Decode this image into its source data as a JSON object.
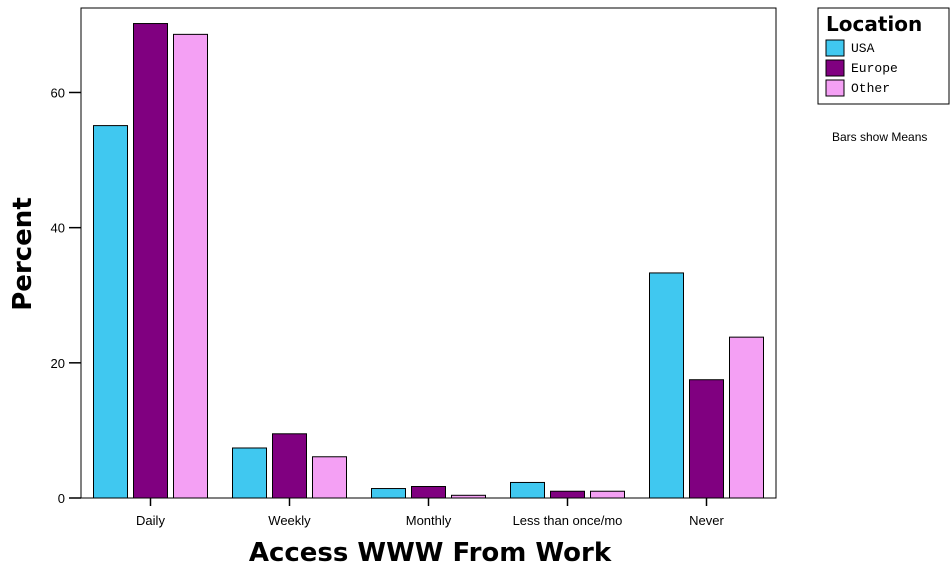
{
  "chart_data": {
    "type": "bar",
    "xlabel": "Access WWW From Work",
    "ylabel": "Percent",
    "categories": [
      "Daily",
      "Weekly",
      "Monthly",
      "Less than once/mo",
      "Never"
    ],
    "series": [
      {
        "name": "USA",
        "color": "#40c8f0",
        "values": [
          55.1,
          7.4,
          1.4,
          2.3,
          33.3
        ]
      },
      {
        "name": "Europe",
        "color": "#800080",
        "values": [
          70.2,
          9.5,
          1.7,
          1.0,
          17.5
        ]
      },
      {
        "name": "Other",
        "color": "#f4a0f4",
        "values": [
          68.6,
          6.1,
          0.4,
          1.0,
          23.8
        ]
      }
    ],
    "ylim": [
      0,
      72.5
    ],
    "yticks": [
      0,
      20,
      40,
      60
    ],
    "legend": {
      "title": "Location",
      "placement": "right"
    },
    "grid": false,
    "note": "Bars show Means"
  }
}
